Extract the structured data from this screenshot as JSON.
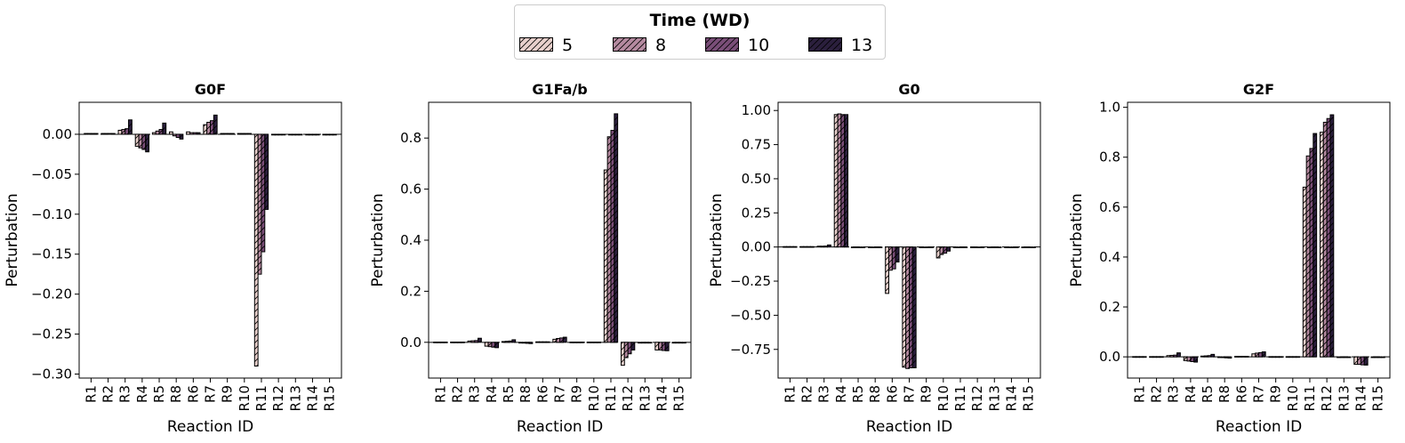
{
  "legend": {
    "title": "Time (WD)",
    "entries": [
      {
        "label": "5",
        "color": "#e8d0cc"
      },
      {
        "label": "8",
        "color": "#b58aa0"
      },
      {
        "label": "10",
        "color": "#7a4e78"
      },
      {
        "label": "13",
        "color": "#2b1f3d"
      }
    ]
  },
  "chart_data": [
    {
      "type": "bar",
      "title": "G0F",
      "xlabel": "Reaction ID",
      "ylabel": "Perturbation",
      "ylim": [
        -0.305,
        0.04
      ],
      "yticks": [
        0.0,
        -0.05,
        -0.1,
        -0.15,
        -0.2,
        -0.25,
        -0.3
      ],
      "ytick_labels": [
        "0.00",
        "−0.05",
        "−0.10",
        "−0.15",
        "−0.20",
        "−0.25",
        "−0.30"
      ],
      "categories": [
        "R1",
        "R2",
        "R3",
        "R4",
        "R5",
        "R8",
        "R6",
        "R7",
        "R9",
        "R10",
        "R11",
        "R12",
        "R13",
        "R14",
        "R15"
      ],
      "series": [
        {
          "name": "5",
          "values": [
            0.001,
            0.001,
            0.005,
            -0.015,
            0.002,
            0.003,
            0.003,
            0.012,
            0.001,
            0.001,
            -0.29,
            0.0,
            0.0,
            0.0,
            0.0
          ]
        },
        {
          "name": "8",
          "values": [
            0.001,
            0.001,
            0.006,
            -0.017,
            0.004,
            -0.002,
            0.002,
            0.015,
            0.001,
            0.001,
            -0.175,
            0.0,
            0.0,
            0.0,
            0.0
          ]
        },
        {
          "name": "10",
          "values": [
            0.001,
            0.001,
            0.007,
            -0.019,
            0.006,
            -0.004,
            0.002,
            0.017,
            0.001,
            0.001,
            -0.147,
            0.0,
            0.0,
            0.0,
            0.0
          ]
        },
        {
          "name": "13",
          "values": [
            0.001,
            0.001,
            0.018,
            -0.022,
            0.014,
            -0.006,
            0.002,
            0.024,
            0.001,
            0.001,
            -0.094,
            0.0,
            0.0,
            0.0,
            0.0
          ]
        }
      ]
    },
    {
      "type": "bar",
      "title": "G1Fa/b",
      "xlabel": "Reaction ID",
      "ylabel": "Perturbation",
      "ylim": [
        -0.14,
        0.94
      ],
      "yticks": [
        0.0,
        0.2,
        0.4,
        0.6,
        0.8
      ],
      "ytick_labels": [
        "0.0",
        "0.2",
        "0.4",
        "0.6",
        "0.8"
      ],
      "categories": [
        "R1",
        "R2",
        "R3",
        "R4",
        "R5",
        "R8",
        "R6",
        "R7",
        "R9",
        "R10",
        "R11",
        "R12",
        "R13",
        "R14",
        "R15"
      ],
      "series": [
        {
          "name": "5",
          "values": [
            0.001,
            0.001,
            0.005,
            -0.015,
            0.003,
            -0.002,
            0.002,
            0.012,
            0.001,
            0.001,
            0.675,
            -0.09,
            0.0,
            -0.03,
            0.0
          ]
        },
        {
          "name": "8",
          "values": [
            0.001,
            0.001,
            0.006,
            -0.017,
            0.004,
            -0.003,
            0.002,
            0.015,
            0.001,
            0.001,
            0.805,
            -0.06,
            0.0,
            -0.03,
            0.0
          ]
        },
        {
          "name": "10",
          "values": [
            0.001,
            0.001,
            0.007,
            -0.019,
            0.005,
            -0.004,
            0.002,
            0.017,
            0.001,
            0.001,
            0.83,
            -0.045,
            0.0,
            -0.032,
            0.0
          ]
        },
        {
          "name": "13",
          "values": [
            0.001,
            0.001,
            0.016,
            -0.021,
            0.01,
            -0.005,
            0.002,
            0.02,
            0.001,
            0.001,
            0.895,
            -0.03,
            0.0,
            -0.033,
            0.0
          ]
        }
      ]
    },
    {
      "type": "bar",
      "title": "G0",
      "xlabel": "Reaction ID",
      "ylabel": "Perturbation",
      "ylim": [
        -0.96,
        1.06
      ],
      "yticks": [
        1.0,
        0.75,
        0.5,
        0.25,
        0.0,
        -0.25,
        -0.5,
        -0.75
      ],
      "ytick_labels": [
        "1.00",
        "0.75",
        "0.50",
        "0.25",
        "0.00",
        "−0.25",
        "−0.50",
        "−0.75"
      ],
      "categories": [
        "R1",
        "R2",
        "R3",
        "R4",
        "R5",
        "R8",
        "R6",
        "R7",
        "R9",
        "R10",
        "R11",
        "R12",
        "R13",
        "R14",
        "R15"
      ],
      "series": [
        {
          "name": "5",
          "values": [
            0.003,
            0.003,
            0.006,
            0.97,
            0.0,
            0.0,
            -0.34,
            -0.88,
            0.0,
            -0.08,
            0.0,
            0.0,
            0.0,
            0.0,
            0.0
          ]
        },
        {
          "name": "8",
          "values": [
            0.003,
            0.003,
            0.006,
            0.975,
            0.0,
            0.0,
            -0.17,
            -0.89,
            0.0,
            -0.055,
            0.0,
            0.0,
            0.0,
            0.0,
            0.0
          ]
        },
        {
          "name": "10",
          "values": [
            0.003,
            0.003,
            0.007,
            0.97,
            0.0,
            0.0,
            -0.16,
            -0.885,
            0.0,
            -0.045,
            0.0,
            0.0,
            0.0,
            0.0,
            0.0
          ]
        },
        {
          "name": "13",
          "values": [
            0.003,
            0.003,
            0.015,
            0.97,
            0.0,
            0.0,
            -0.11,
            -0.885,
            0.0,
            -0.03,
            0.0,
            0.0,
            0.0,
            0.0,
            0.0
          ]
        }
      ]
    },
    {
      "type": "bar",
      "title": "G2F",
      "xlabel": "Reaction ID",
      "ylabel": "Perturbation",
      "ylim": [
        -0.085,
        1.02
      ],
      "yticks": [
        0.0,
        0.2,
        0.4,
        0.6,
        0.8,
        1.0
      ],
      "ytick_labels": [
        "0.0",
        "0.2",
        "0.4",
        "0.6",
        "0.8",
        "1.0"
      ],
      "categories": [
        "R1",
        "R2",
        "R3",
        "R4",
        "R5",
        "R8",
        "R6",
        "R7",
        "R9",
        "R10",
        "R11",
        "R12",
        "R13",
        "R14",
        "R15"
      ],
      "series": [
        {
          "name": "5",
          "values": [
            0.001,
            0.001,
            0.005,
            -0.015,
            0.003,
            -0.002,
            0.002,
            0.012,
            0.001,
            0.001,
            0.68,
            0.9,
            0.0,
            -0.03,
            0.0
          ]
        },
        {
          "name": "8",
          "values": [
            0.001,
            0.001,
            0.006,
            -0.017,
            0.004,
            -0.003,
            0.002,
            0.015,
            0.001,
            0.001,
            0.805,
            0.94,
            0.0,
            -0.03,
            0.0
          ]
        },
        {
          "name": "10",
          "values": [
            0.001,
            0.001,
            0.007,
            -0.019,
            0.005,
            -0.004,
            0.002,
            0.017,
            0.001,
            0.001,
            0.835,
            0.955,
            0.0,
            -0.032,
            0.0
          ]
        },
        {
          "name": "13",
          "values": [
            0.001,
            0.001,
            0.016,
            -0.021,
            0.01,
            -0.005,
            0.002,
            0.02,
            0.001,
            0.001,
            0.895,
            0.97,
            0.0,
            -0.033,
            0.0
          ]
        }
      ]
    }
  ]
}
